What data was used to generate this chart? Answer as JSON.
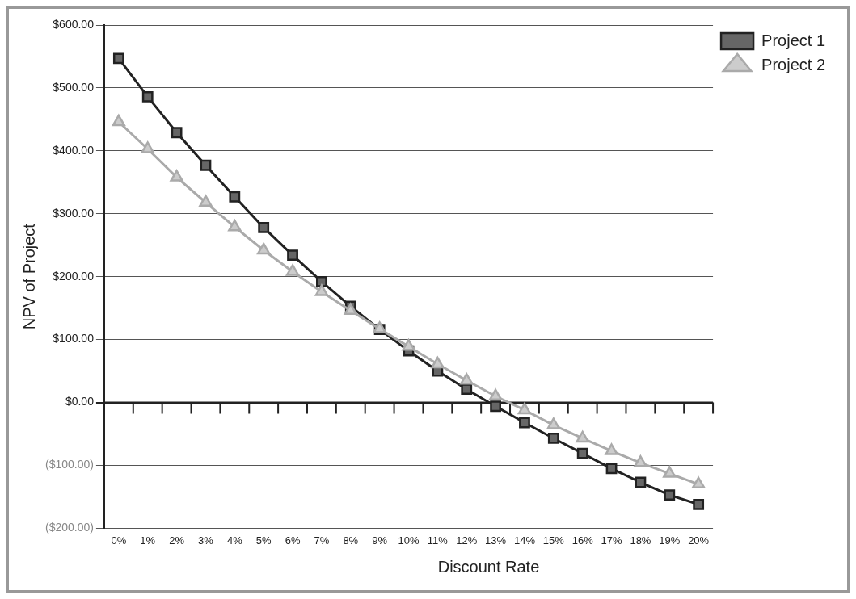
{
  "chart_data": {
    "type": "line",
    "xlabel": "Discount Rate",
    "ylabel": "NPV of Project",
    "categories": [
      "0%",
      "1%",
      "2%",
      "3%",
      "4%",
      "5%",
      "6%",
      "7%",
      "8%",
      "9%",
      "10%",
      "11%",
      "12%",
      "13%",
      "14%",
      "15%",
      "16%",
      "17%",
      "18%",
      "19%",
      "20%"
    ],
    "series": [
      {
        "name": "Project 1",
        "color": "#222222",
        "marker": "square",
        "values": [
          547,
          486,
          429,
          377,
          327,
          278,
          234,
          192,
          153,
          116,
          82,
          50,
          21,
          -6,
          -32,
          -57,
          -81,
          -105,
          -127,
          -147,
          -162
        ]
      },
      {
        "name": "Project 2",
        "color": "#aaaaaa",
        "marker": "triangle",
        "values": [
          446,
          403,
          358,
          318,
          279,
          242,
          208,
          176,
          146,
          117,
          89,
          61,
          35,
          10,
          -12,
          -36,
          -57,
          -77,
          -96,
          -113,
          -130
        ]
      }
    ],
    "ylim": [
      -200,
      600
    ],
    "yticks": [
      {
        "value": -200,
        "label": "($200.00)"
      },
      {
        "value": -100,
        "label": "($100.00)"
      },
      {
        "value": 0,
        "label": "$0.00"
      },
      {
        "value": 100,
        "label": "$100.00"
      },
      {
        "value": 200,
        "label": "$200.00"
      },
      {
        "value": 300,
        "label": "$300.00"
      },
      {
        "value": 400,
        "label": "$400.00"
      },
      {
        "value": 500,
        "label": "$500.00"
      },
      {
        "value": 600,
        "label": "$600.00"
      }
    ],
    "grid": "y",
    "legend": "top right",
    "line_style": "solid"
  }
}
